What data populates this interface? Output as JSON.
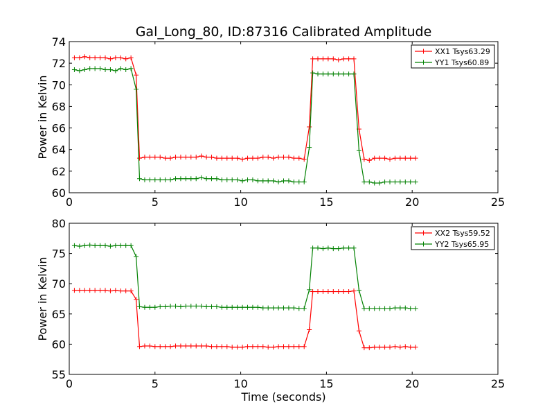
{
  "figure": {
    "title": "Gal_Long_80, ID:87316 Calibrated Amplitude",
    "xlabel": "Time (seconds)"
  },
  "chart_data": [
    {
      "type": "line",
      "title": "Gal_Long_80, ID:87316 Calibrated Amplitude",
      "xlabel": "",
      "ylabel": "Power in Kelvin",
      "xlim": [
        0,
        25
      ],
      "ylim": [
        60,
        74
      ],
      "xticks": [
        0,
        5,
        10,
        15,
        20,
        25
      ],
      "yticks": [
        60,
        62,
        64,
        66,
        68,
        70,
        72,
        74
      ],
      "grid": false,
      "legend": "top-right",
      "x": [
        0.3,
        0.6,
        0.9,
        1.2,
        1.5,
        1.8,
        2.1,
        2.4,
        2.7,
        3.0,
        3.3,
        3.6,
        3.9,
        4.1,
        4.4,
        4.7,
        5.0,
        5.3,
        5.6,
        5.9,
        6.2,
        6.5,
        6.8,
        7.1,
        7.4,
        7.7,
        8.0,
        8.3,
        8.6,
        8.9,
        9.2,
        9.5,
        9.8,
        10.1,
        10.4,
        10.7,
        11.0,
        11.3,
        11.6,
        11.9,
        12.2,
        12.5,
        12.8,
        13.1,
        13.4,
        13.7,
        14.0,
        14.2,
        14.5,
        14.8,
        15.1,
        15.4,
        15.7,
        16.0,
        16.3,
        16.6,
        16.9,
        17.2,
        17.5,
        17.8,
        18.1,
        18.4,
        18.7,
        19.0,
        19.3,
        19.6,
        19.9,
        20.2
      ],
      "series": [
        {
          "name": "XX1 Tsys63.29",
          "color": "#ff0000",
          "values": [
            72.5,
            72.5,
            72.6,
            72.5,
            72.5,
            72.5,
            72.5,
            72.4,
            72.5,
            72.5,
            72.4,
            72.5,
            70.9,
            63.2,
            63.3,
            63.3,
            63.3,
            63.3,
            63.2,
            63.2,
            63.3,
            63.3,
            63.3,
            63.3,
            63.3,
            63.4,
            63.3,
            63.3,
            63.2,
            63.2,
            63.2,
            63.2,
            63.2,
            63.1,
            63.2,
            63.2,
            63.2,
            63.3,
            63.3,
            63.2,
            63.3,
            63.3,
            63.3,
            63.2,
            63.2,
            63.1,
            66.1,
            72.4,
            72.4,
            72.4,
            72.4,
            72.4,
            72.3,
            72.4,
            72.4,
            72.4,
            65.9,
            63.1,
            63.0,
            63.2,
            63.2,
            63.2,
            63.1,
            63.2,
            63.2,
            63.2,
            63.2,
            63.2
          ]
        },
        {
          "name": "YY1 Tsys60.89",
          "color": "#008000",
          "values": [
            71.4,
            71.3,
            71.4,
            71.5,
            71.5,
            71.5,
            71.4,
            71.4,
            71.3,
            71.5,
            71.4,
            71.5,
            69.6,
            61.3,
            61.2,
            61.2,
            61.2,
            61.2,
            61.2,
            61.2,
            61.3,
            61.3,
            61.3,
            61.3,
            61.3,
            61.4,
            61.3,
            61.3,
            61.3,
            61.2,
            61.2,
            61.2,
            61.2,
            61.1,
            61.2,
            61.2,
            61.1,
            61.1,
            61.1,
            61.1,
            61.0,
            61.1,
            61.1,
            61.0,
            61.0,
            61.0,
            64.2,
            71.1,
            71.0,
            71.0,
            71.0,
            71.0,
            71.0,
            71.0,
            71.0,
            71.0,
            63.9,
            61.0,
            61.0,
            60.9,
            60.9,
            61.0,
            61.0,
            61.0,
            61.0,
            61.0,
            61.0,
            61.0
          ]
        }
      ]
    },
    {
      "type": "line",
      "title": "",
      "xlabel": "Time (seconds)",
      "ylabel": "Power in Kelvin",
      "xlim": [
        0,
        25
      ],
      "ylim": [
        55,
        80
      ],
      "xticks": [
        0,
        5,
        10,
        15,
        20,
        25
      ],
      "yticks": [
        55,
        60,
        65,
        70,
        75,
        80
      ],
      "grid": false,
      "legend": "top-right",
      "x": [
        0.3,
        0.6,
        0.9,
        1.2,
        1.5,
        1.8,
        2.1,
        2.4,
        2.7,
        3.0,
        3.3,
        3.6,
        3.9,
        4.1,
        4.4,
        4.7,
        5.0,
        5.3,
        5.6,
        5.9,
        6.2,
        6.5,
        6.8,
        7.1,
        7.4,
        7.7,
        8.0,
        8.3,
        8.6,
        8.9,
        9.2,
        9.5,
        9.8,
        10.1,
        10.4,
        10.7,
        11.0,
        11.3,
        11.6,
        11.9,
        12.2,
        12.5,
        12.8,
        13.1,
        13.4,
        13.7,
        14.0,
        14.2,
        14.5,
        14.8,
        15.1,
        15.4,
        15.7,
        16.0,
        16.3,
        16.6,
        16.9,
        17.2,
        17.5,
        17.8,
        18.1,
        18.4,
        18.7,
        19.0,
        19.3,
        19.6,
        19.9,
        20.2
      ],
      "series": [
        {
          "name": "XX2 Tsys59.52",
          "color": "#ff0000",
          "values": [
            68.9,
            68.9,
            68.9,
            68.9,
            68.9,
            68.9,
            68.9,
            68.8,
            68.9,
            68.8,
            68.8,
            68.8,
            67.4,
            59.6,
            59.7,
            59.7,
            59.6,
            59.6,
            59.6,
            59.6,
            59.7,
            59.7,
            59.7,
            59.7,
            59.7,
            59.7,
            59.7,
            59.6,
            59.6,
            59.6,
            59.6,
            59.5,
            59.5,
            59.5,
            59.6,
            59.6,
            59.6,
            59.6,
            59.5,
            59.5,
            59.6,
            59.6,
            59.6,
            59.6,
            59.6,
            59.6,
            62.4,
            68.7,
            68.7,
            68.7,
            68.7,
            68.7,
            68.7,
            68.7,
            68.7,
            68.8,
            62.2,
            59.4,
            59.4,
            59.5,
            59.5,
            59.5,
            59.5,
            59.6,
            59.5,
            59.6,
            59.5,
            59.5
          ]
        },
        {
          "name": "YY2 Tsys65.95",
          "color": "#008000",
          "values": [
            76.3,
            76.2,
            76.3,
            76.4,
            76.3,
            76.3,
            76.3,
            76.2,
            76.3,
            76.3,
            76.3,
            76.3,
            74.5,
            66.2,
            66.1,
            66.1,
            66.1,
            66.2,
            66.2,
            66.3,
            66.3,
            66.2,
            66.3,
            66.3,
            66.3,
            66.3,
            66.2,
            66.2,
            66.2,
            66.1,
            66.1,
            66.1,
            66.1,
            66.1,
            66.1,
            66.1,
            66.1,
            66.0,
            66.0,
            66.0,
            66.0,
            66.0,
            66.0,
            66.0,
            65.9,
            65.9,
            69.0,
            75.9,
            75.9,
            75.8,
            75.9,
            75.8,
            75.8,
            75.9,
            75.9,
            75.9,
            68.9,
            65.9,
            65.9,
            65.9,
            65.9,
            65.9,
            65.9,
            66.0,
            66.0,
            66.0,
            65.9,
            65.9
          ]
        }
      ]
    }
  ]
}
